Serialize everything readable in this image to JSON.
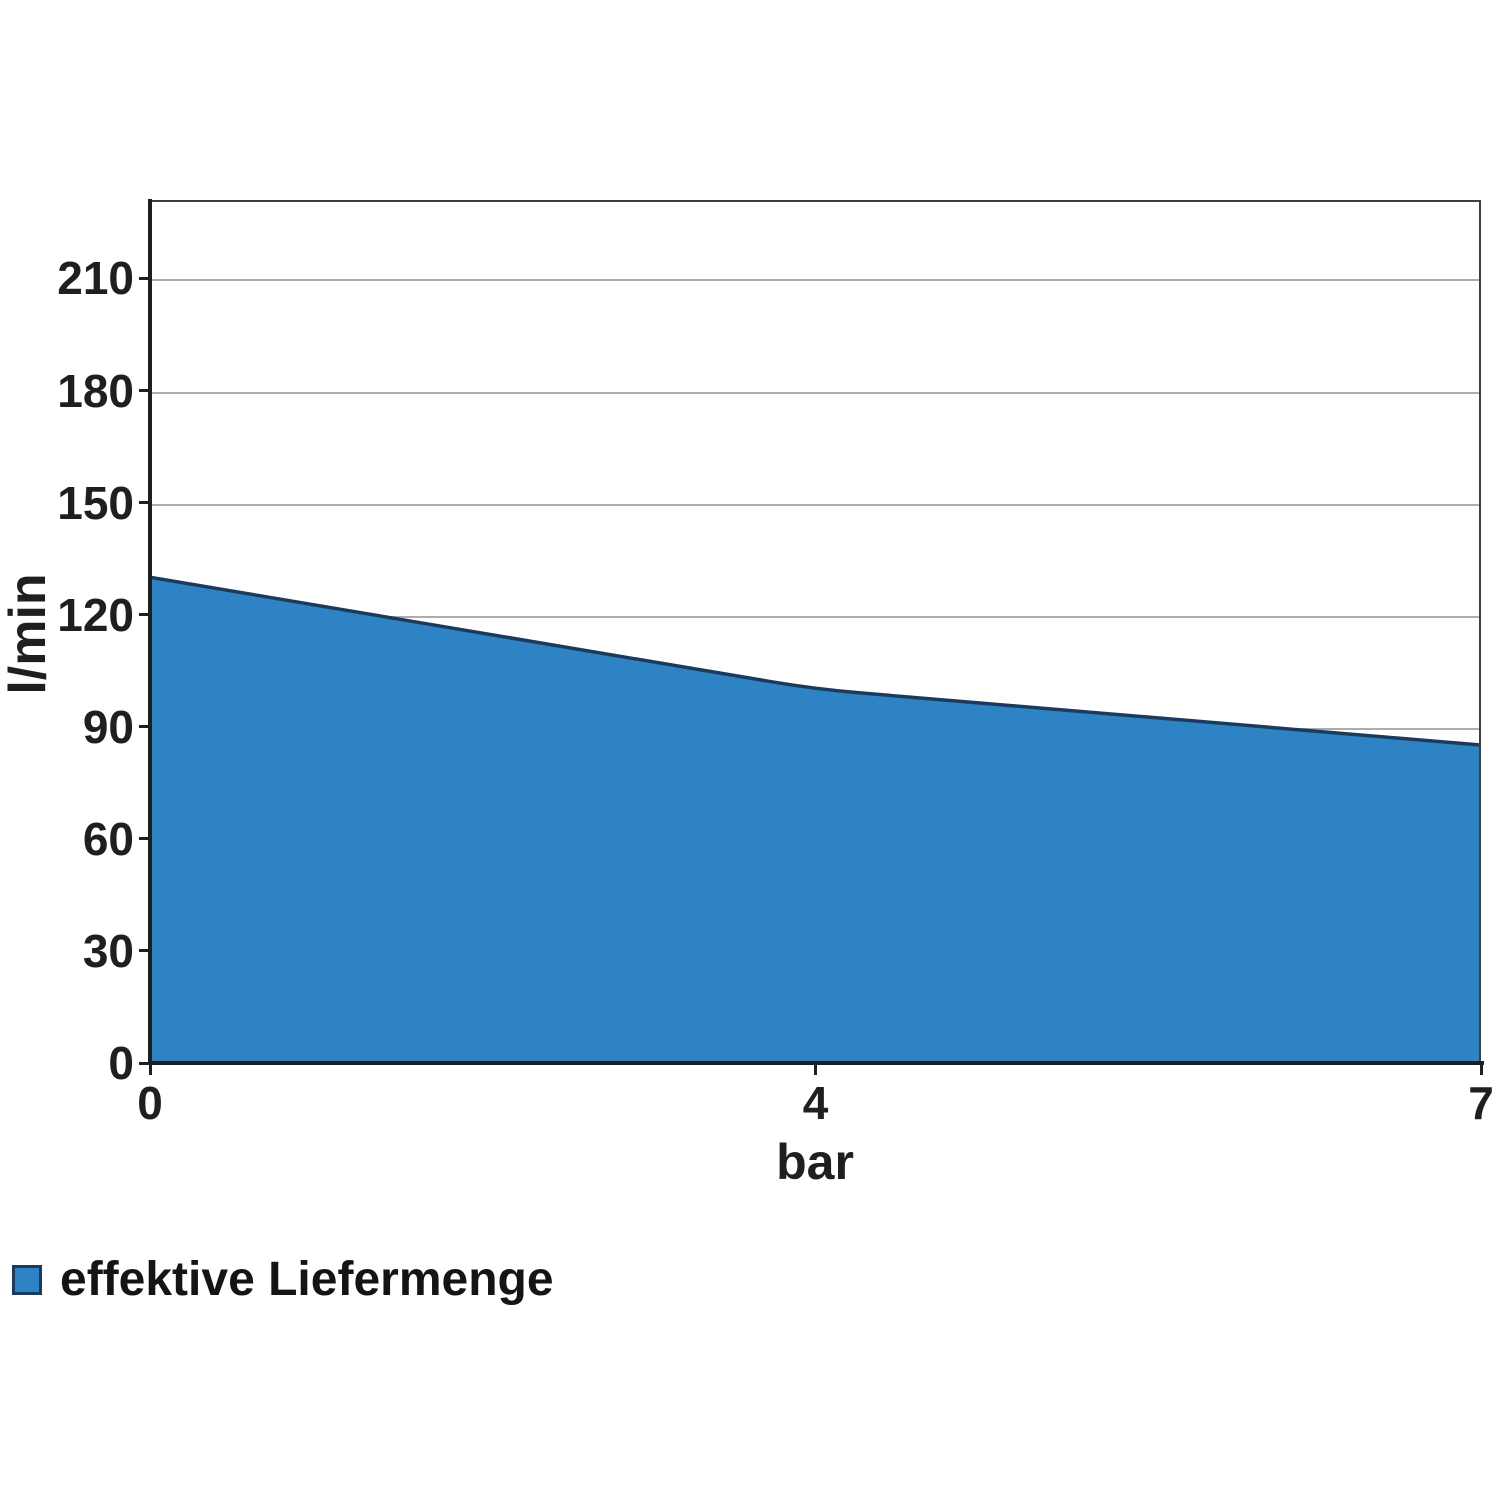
{
  "chart_data": {
    "type": "area",
    "categories": [
      "0",
      "4",
      "7"
    ],
    "x": [
      0,
      4,
      7
    ],
    "series": [
      {
        "name": "effektive Liefermenge",
        "values": [
          130,
          100,
          85
        ]
      }
    ],
    "title": "",
    "xlabel": "bar",
    "ylabel": "l/min",
    "ylim": [
      0,
      231
    ],
    "yticks": [
      0,
      30,
      60,
      90,
      120,
      150,
      180,
      210
    ],
    "xticks": [
      "0",
      "4",
      "7"
    ],
    "x_spacing": "categorical-even",
    "grid": true,
    "legend_position": "bottom-left",
    "colors": {
      "area_fill": "#2e83c5",
      "area_line": "#1b3b5e",
      "grid": "#acacac",
      "axis": "#1f1f1f",
      "plot_border": "#3f3f3f",
      "text": "#1f1f1f",
      "background": "#ffffff"
    }
  },
  "legend": {
    "items": [
      {
        "label": "effektive Liefermenge",
        "swatch_color": "#2e83c5"
      }
    ]
  }
}
